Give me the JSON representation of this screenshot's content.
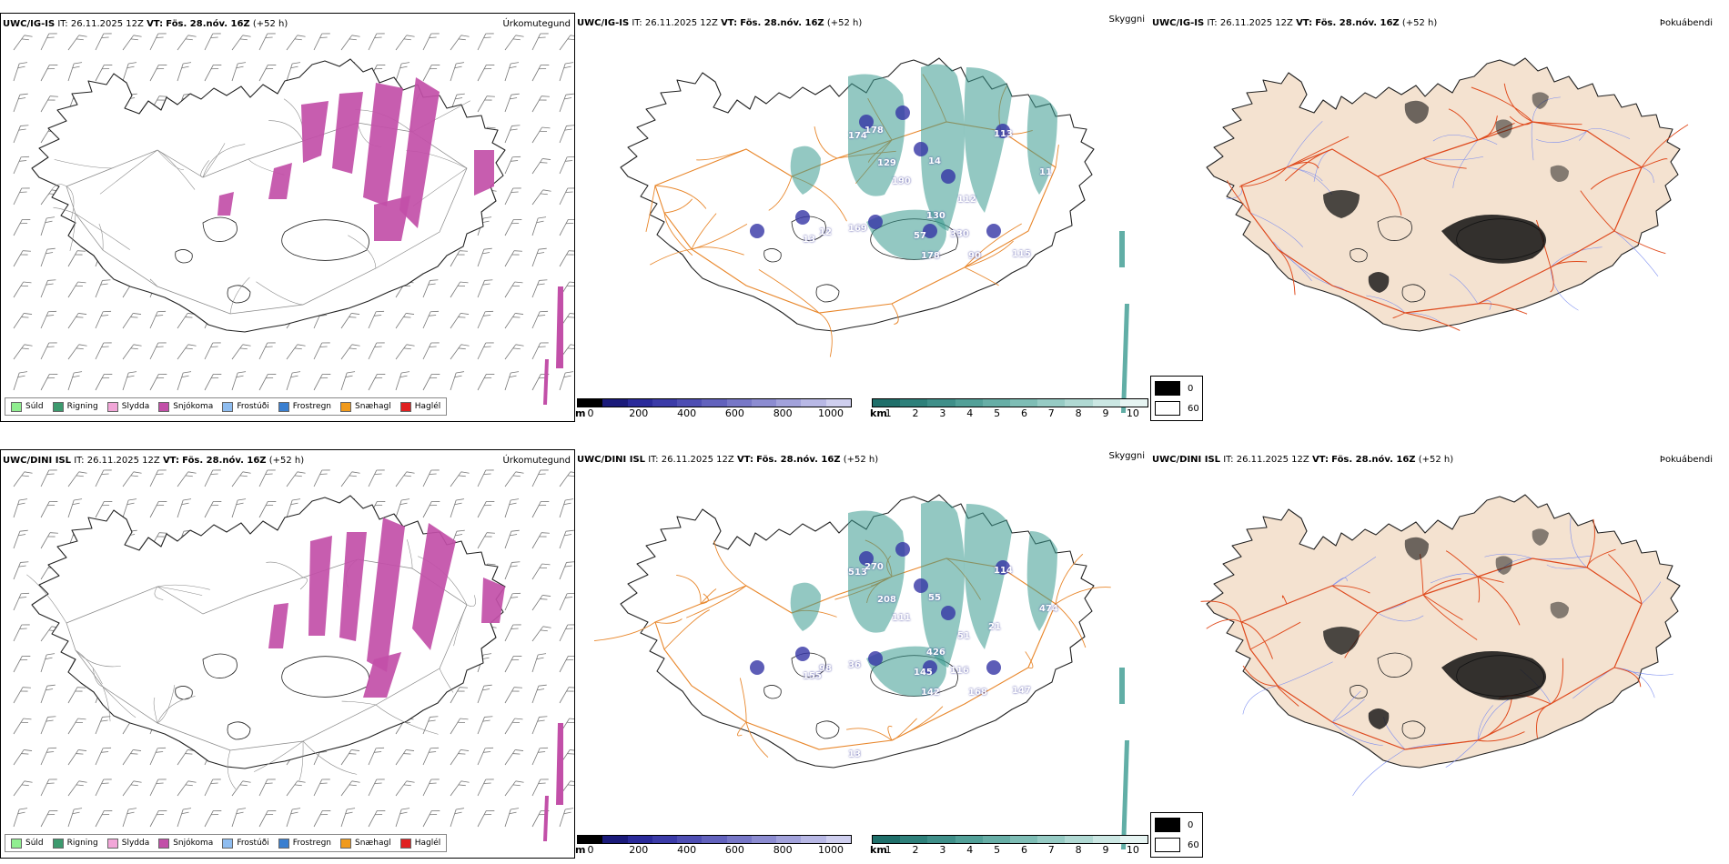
{
  "rows": [
    {
      "model": "UWC/IG-IS",
      "it_label": "IT:",
      "it_value": "26.11.2025 12Z",
      "vt_label": "VT:",
      "vt_value": "Fös. 28.nóv. 16Z",
      "lead": "(+52 h)",
      "titles": [
        "Úrkomutegund",
        "Skyggni",
        "Þokuábendi"
      ],
      "vis_labels": [
        "174",
        "178",
        "129",
        "190",
        "14",
        "113",
        "11",
        "130",
        "169",
        "330",
        "112",
        "57",
        "178",
        "90",
        "115",
        "13",
        "12"
      ]
    },
    {
      "model": "UWC/DINI ISL",
      "it_label": "IT:",
      "it_value": "26.11.2025 12Z",
      "vt_label": "VT:",
      "vt_value": "Fös. 28.nóv. 16Z",
      "lead": "(+52 h)",
      "titles": [
        "Úrkomutegund",
        "Skyggni",
        "Þokuábendi"
      ],
      "vis_labels": [
        "513",
        "270",
        "208",
        "111",
        "55",
        "114",
        "474",
        "426",
        "36",
        "116",
        "51",
        "145",
        "142",
        "168",
        "147",
        "155",
        "98",
        "21",
        "13"
      ]
    }
  ],
  "precip_legend": [
    {
      "label": "Súld",
      "color": "#90ee90"
    },
    {
      "label": "Rigning",
      "color": "#3c9a6e"
    },
    {
      "label": "Slydda",
      "color": "#f2a6d8"
    },
    {
      "label": "Snjókoma",
      "color": "#c24fa8"
    },
    {
      "label": "Frostúði",
      "color": "#8fbdf0"
    },
    {
      "label": "Frostregn",
      "color": "#3a7fd0"
    },
    {
      "label": "Snæhagl",
      "color": "#f09a1c"
    },
    {
      "label": "Haglél",
      "color": "#e02020"
    }
  ],
  "ceiling_scale": {
    "unit": "m",
    "ticks": [
      "0",
      "200",
      "400",
      "600",
      "800",
      "1000"
    ],
    "colors": [
      "#000000",
      "#1a1a7a",
      "#2a2a9a",
      "#3b3ba8",
      "#4e4eb3",
      "#6262bd",
      "#7777c7",
      "#8c8cd1",
      "#a2a2db",
      "#b8b8e5",
      "#cfcfef"
    ]
  },
  "visibility_scale": {
    "unit": "km",
    "ticks": [
      "1",
      "2",
      "3",
      "4",
      "5",
      "6",
      "7",
      "8",
      "9",
      "10"
    ],
    "colors": [
      "#1f6f6a",
      "#2e807a",
      "#3f8f89",
      "#52a098",
      "#67aea6",
      "#7ebdb5",
      "#96cbc4",
      "#b0d9d3",
      "#cbe7e3",
      "#e6f4f2"
    ]
  },
  "fog_key": [
    {
      "label": "0",
      "color": "#000000"
    },
    {
      "label": "60",
      "color": "#ffffff"
    }
  ],
  "colors": {
    "snow": "#c24fa8",
    "road_orange": "#e8862a",
    "road_red": "#e04a1c",
    "river_blue": "#7a8cf0",
    "land_beige": "#f4e2d0",
    "vis_teal": "#3a9a90",
    "ceiling_blue": "#3535a5"
  }
}
